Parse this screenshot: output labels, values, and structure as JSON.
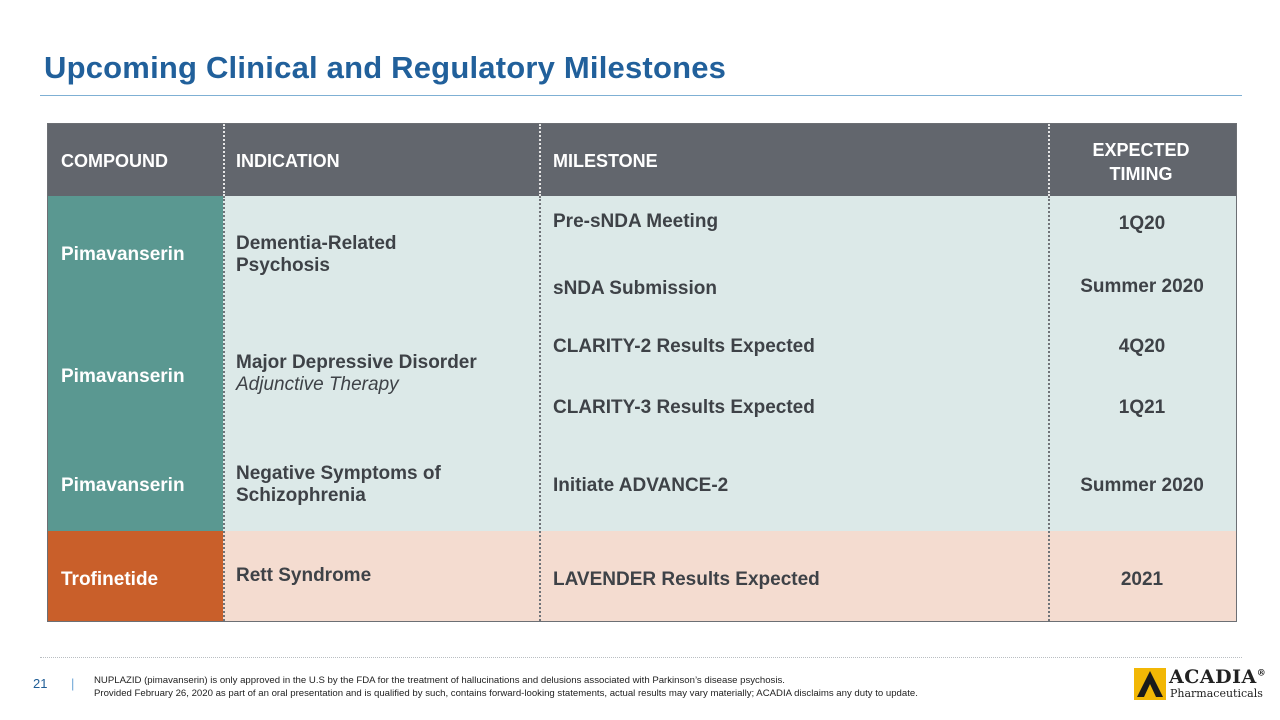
{
  "title": "Upcoming Clinical and Regulatory Milestones",
  "table": {
    "headers": {
      "compound": "COMPOUND",
      "indication": "INDICATION",
      "milestone": "MILESTONE",
      "timing_line1": "EXPECTED",
      "timing_line2": "TIMING"
    },
    "rows": [
      {
        "compound": "Pimavanserin",
        "indication_line1": "Dementia-Related",
        "indication_line2": "Psychosis",
        "milestones": [
          {
            "milestone": "Pre-sNDA Meeting",
            "timing": "1Q20"
          },
          {
            "milestone": "sNDA Submission",
            "timing": "Summer 2020"
          }
        ]
      },
      {
        "compound": "Pimavanserin",
        "indication_line1": "Major Depressive Disorder",
        "indication_line2": "Adjunctive Therapy",
        "milestones": [
          {
            "milestone": "CLARITY-2 Results Expected",
            "timing": "4Q20"
          },
          {
            "milestone": "CLARITY-3 Results Expected",
            "timing": "1Q21"
          }
        ]
      },
      {
        "compound": "Pimavanserin",
        "indication_line1": "Negative Symptoms of",
        "indication_line2": "Schizophrenia",
        "milestones": [
          {
            "milestone": "Initiate ADVANCE-2",
            "timing": "Summer 2020"
          }
        ]
      },
      {
        "compound": "Trofinetide",
        "indication_line1": "Rett Syndrome",
        "milestones": [
          {
            "milestone": "LAVENDER Results Expected",
            "timing": "2021"
          }
        ]
      }
    ]
  },
  "footer": {
    "page_number": "21",
    "separator": "|",
    "footnote_line1": "NUPLAZID (pimavanserin) is only approved in the U.S by the FDA for the treatment of hallucinations and delusions associated with Parkinson’s disease psychosis.",
    "footnote_line2": "Provided February 26, 2020 as part of an oral presentation and is qualified by such, contains forward-looking statements, actual results may vary materially; ACADIA disclaims any duty to update."
  },
  "logo": {
    "name": "ACADIA",
    "trademark": "®",
    "sub": "Pharmaceuticals"
  },
  "colors": {
    "title": "#21609b",
    "header_bg": "#62666d",
    "teal": "#5a9891",
    "teal_light": "#dce9e8",
    "orange": "#c95f2a",
    "orange_light": "#f4dcd0",
    "logo_mark": "#f2b705"
  }
}
